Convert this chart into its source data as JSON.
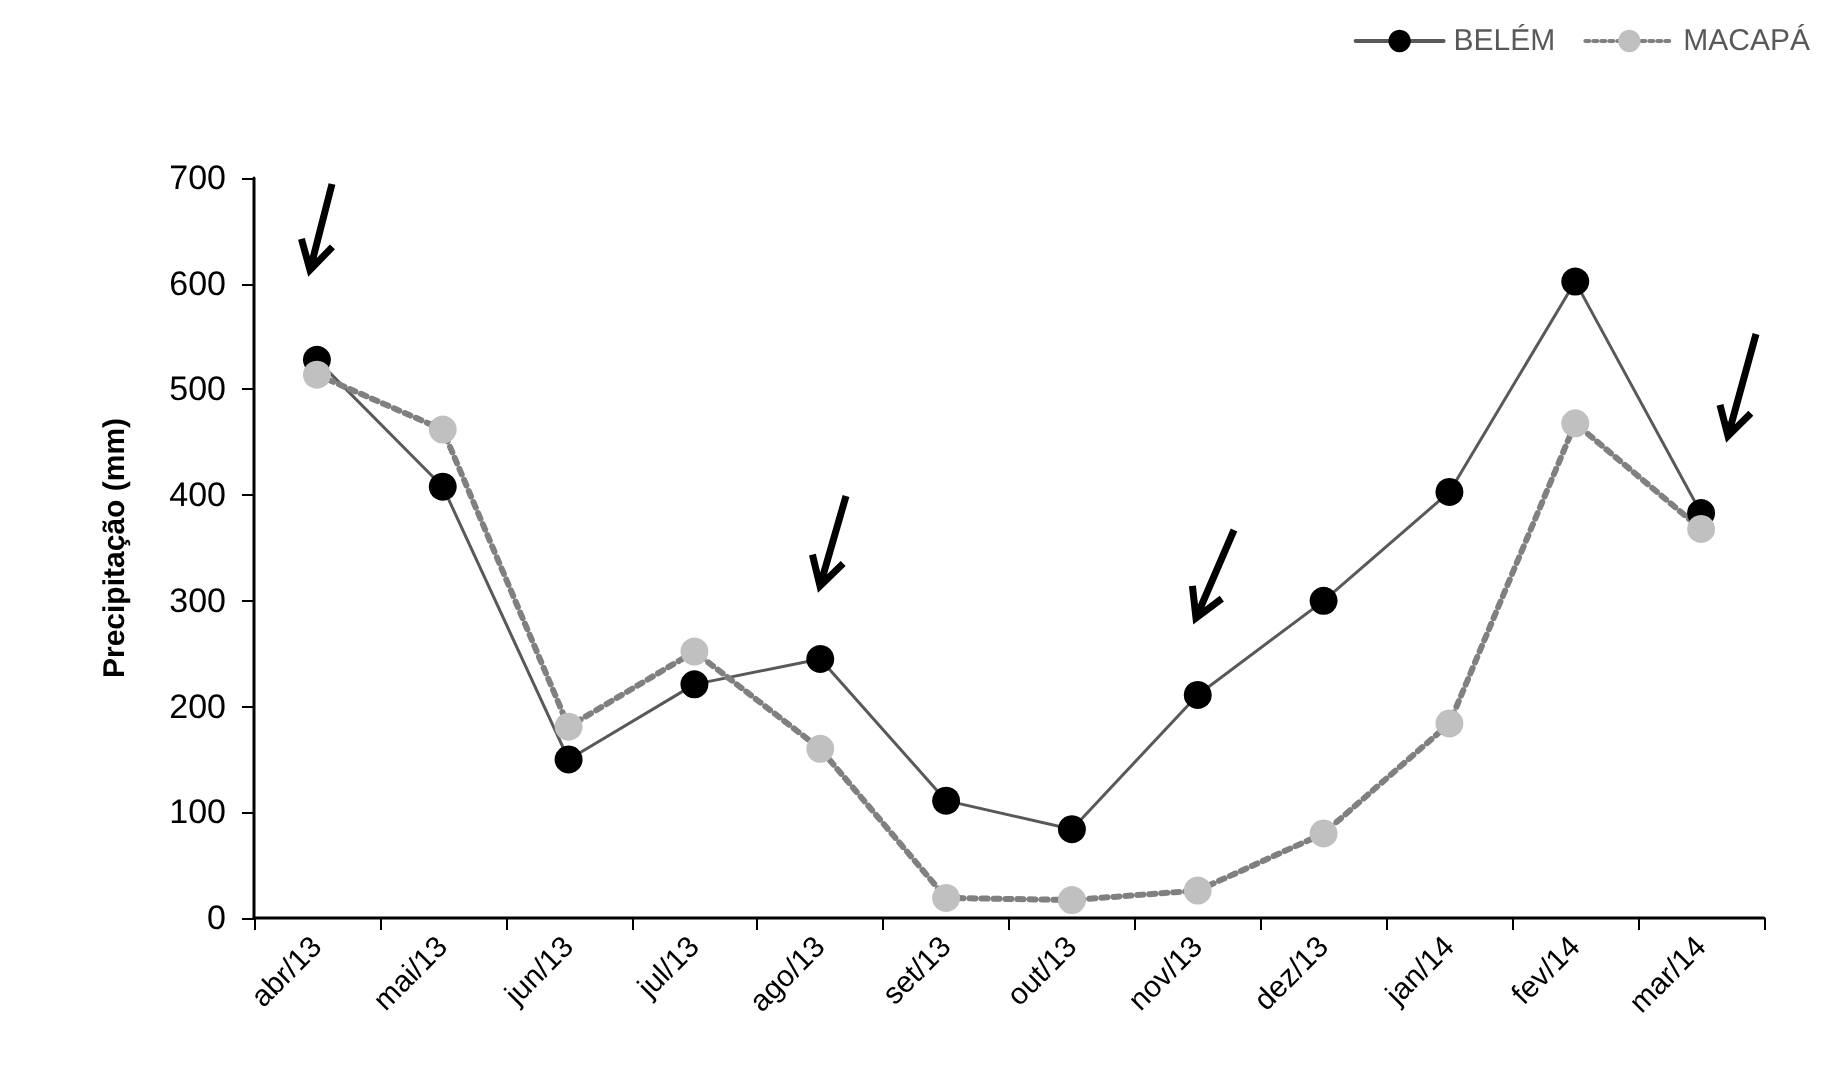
{
  "chart_data": {
    "type": "line",
    "ylabel": "Precipitação (mm)",
    "categories": [
      "abr/13",
      "mai/13",
      "jun/13",
      "jul/13",
      "ago/13",
      "set/13",
      "out/13",
      "nov/13",
      "dez/13",
      "jan/14",
      "fev/14",
      "mar/14"
    ],
    "series": [
      {
        "name": "BELÉM",
        "color": "#000000",
        "line_style": "solid",
        "values": [
          528,
          408,
          150,
          221,
          245,
          111,
          84,
          211,
          300,
          403,
          602,
          383
        ]
      },
      {
        "name": "MACAPÁ",
        "color": "#c0c0c0",
        "line_style": "dotted",
        "values": [
          514,
          462,
          181,
          252,
          160,
          19,
          17,
          26,
          80,
          184,
          468,
          368
        ]
      }
    ],
    "ylim": [
      0,
      700
    ],
    "yticks": [
      0,
      100,
      200,
      300,
      400,
      500,
      600,
      700
    ],
    "grid": false,
    "legend": "top right",
    "marker": "circle"
  }
}
